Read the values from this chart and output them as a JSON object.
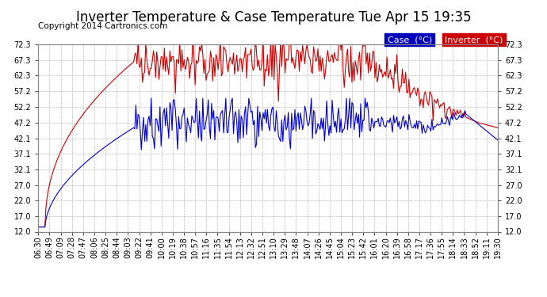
{
  "title": "Inverter Temperature & Case Temperature Tue Apr 15 19:35",
  "copyright": "Copyright 2014 Cartronics.com",
  "background_color": "#ffffff",
  "plot_bg_color": "#ffffff",
  "grid_color": "#bbbbbb",
  "yticks": [
    12.0,
    17.0,
    22.0,
    27.0,
    32.1,
    37.1,
    42.1,
    47.2,
    52.2,
    57.2,
    62.3,
    67.3,
    72.3
  ],
  "ymin": 12.0,
  "ymax": 72.3,
  "xtick_labels": [
    "06:30",
    "06:49",
    "07:09",
    "07:28",
    "07:47",
    "08:06",
    "08:25",
    "08:44",
    "09:03",
    "09:22",
    "09:41",
    "10:00",
    "10:19",
    "10:38",
    "10:57",
    "11:16",
    "11:35",
    "11:54",
    "12:13",
    "12:32",
    "12:51",
    "13:10",
    "13:29",
    "13:48",
    "14:07",
    "14:26",
    "14:45",
    "15:04",
    "15:23",
    "15:42",
    "16:01",
    "16:20",
    "16:39",
    "16:58",
    "17:17",
    "17:36",
    "17:55",
    "18:14",
    "18:33",
    "18:52",
    "19:11",
    "19:30"
  ],
  "case_color": "#0000cc",
  "inverter_color": "#cc0000",
  "legend_case_bg": "#0000bb",
  "legend_inverter_bg": "#cc0000",
  "legend_text_color": "#ffffff",
  "title_fontsize": 12,
  "copyright_fontsize": 7.5,
  "tick_fontsize": 7,
  "legend_fontsize": 8
}
